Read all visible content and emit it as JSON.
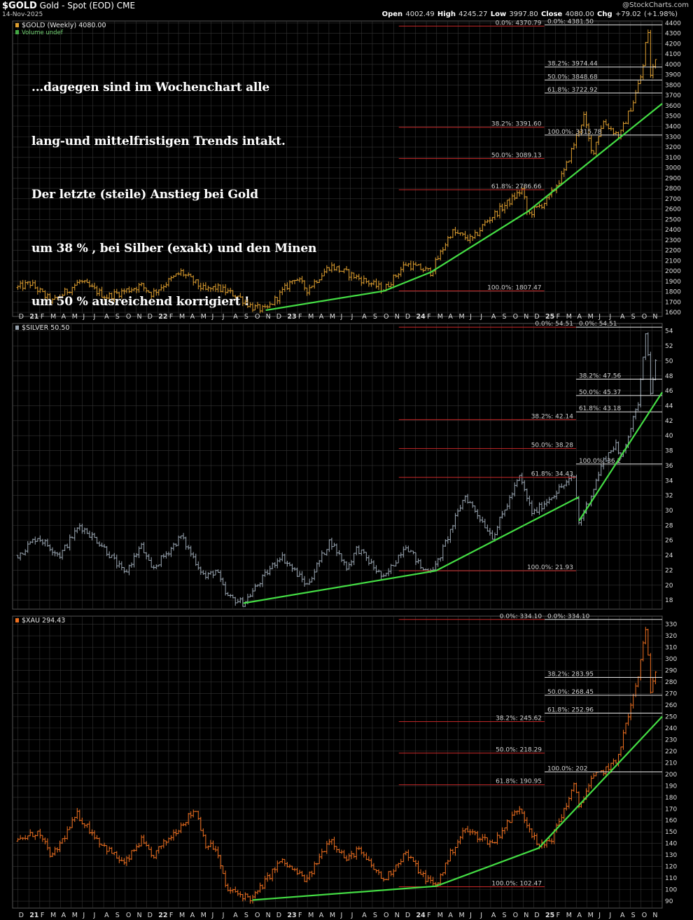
{
  "header": {
    "symbol": "$GOLD",
    "description": "Gold - Spot (EOD)",
    "exchange": "CME",
    "date": "14-Nov-2025",
    "brand": "@StockCharts.com",
    "ohlc": {
      "open_label": "Open",
      "open": "4002.49",
      "high_label": "High",
      "high": "4245.27",
      "low_label": "Low",
      "low": "3997.80",
      "close_label": "Close",
      "close": "4080.00",
      "chg_label": "Chg",
      "chg": "+79.02 (+1.98%)"
    }
  },
  "note_lines": [
    "...dagegen sind im Wochenchart alle",
    "lang-und mittelfristigen Trends intakt.",
    "Der letzte (steile) Anstieg bei Gold",
    "um 38 % , bei Silber (exakt) und den Minen",
    "um 50 % ausreichend korrigiert !"
  ],
  "colors": {
    "background": "#000000",
    "grid": "#333333",
    "gold_bars": "#E0A030",
    "silver_bars": "#9AA6B2",
    "xau_bars": "#F07020",
    "trendline": "#44DD44",
    "fib_red": "#C82828",
    "fib_white": "#E8E8E8",
    "axis_text": "#DDDDDD"
  },
  "x_axis": {
    "months": [
      "D",
      "21",
      "F",
      "M",
      "A",
      "M",
      "J",
      "J",
      "A",
      "S",
      "O",
      "N",
      "D",
      "22",
      "F",
      "M",
      "A",
      "M",
      "J",
      "J",
      "A",
      "S",
      "O",
      "N",
      "D",
      "23",
      "F",
      "M",
      "A",
      "M",
      "J",
      "J",
      "A",
      "S",
      "O",
      "N",
      "D",
      "24",
      "F",
      "M",
      "A",
      "M",
      "J",
      "J",
      "A",
      "S",
      "O",
      "N",
      "D",
      "25",
      "F",
      "M",
      "A",
      "M",
      "J",
      "J",
      "A",
      "S",
      "O",
      "N"
    ],
    "year_labels": [
      "21",
      "22",
      "23",
      "24",
      "25"
    ]
  },
  "chart_data": [
    {
      "type": "ohlc",
      "title": "$GOLD (Weekly) 4080.00",
      "legend": [
        "$GOLD (Weekly) 4080.00",
        "Volume undef"
      ],
      "ylim": [
        1560,
        4420
      ],
      "yticks": [
        1600,
        1700,
        1800,
        1900,
        2000,
        2100,
        2200,
        2300,
        2400,
        2500,
        2600,
        2700,
        2800,
        2900,
        3000,
        3100,
        3200,
        3300,
        3400,
        3500,
        3600,
        3700,
        3800,
        3900,
        4000,
        4100,
        4200,
        4300,
        4400
      ],
      "key_points": [
        {
          "t": "2020-12-01",
          "v": 1840
        },
        {
          "t": "2021-01-05",
          "v": 1880
        },
        {
          "t": "2021-03-08",
          "v": 1700
        },
        {
          "t": "2021-05-25",
          "v": 1900
        },
        {
          "t": "2021-08-09",
          "v": 1750
        },
        {
          "t": "2021-11-15",
          "v": 1860
        },
        {
          "t": "2021-12-15",
          "v": 1780
        },
        {
          "t": "2022-03-08",
          "v": 1990
        },
        {
          "t": "2022-05-16",
          "v": 1810
        },
        {
          "t": "2022-06-15",
          "v": 1840
        },
        {
          "t": "2022-08-15",
          "v": 1760
        },
        {
          "t": "2022-09-26",
          "v": 1650
        },
        {
          "t": "2022-11-03",
          "v": 1620
        },
        {
          "t": "2023-01-25",
          "v": 1940
        },
        {
          "t": "2023-02-28",
          "v": 1820
        },
        {
          "t": "2023-05-04",
          "v": 2050
        },
        {
          "t": "2023-08-21",
          "v": 1890
        },
        {
          "t": "2023-10-04",
          "v": 1820
        },
        {
          "t": "2023-12-04",
          "v": 2070
        },
        {
          "t": "2024-02-14",
          "v": 1990
        },
        {
          "t": "2024-04-12",
          "v": 2380
        },
        {
          "t": "2024-06-10",
          "v": 2300
        },
        {
          "t": "2024-07-17",
          "v": 2470
        },
        {
          "t": "2024-09-25",
          "v": 2680
        },
        {
          "t": "2024-10-30",
          "v": 2790
        },
        {
          "t": "2024-11-14",
          "v": 2540
        },
        {
          "t": "2025-01-10",
          "v": 2690
        },
        {
          "t": "2025-02-24",
          "v": 2950
        },
        {
          "t": "2025-04-22",
          "v": 3500
        },
        {
          "t": "2025-05-15",
          "v": 3120
        },
        {
          "t": "2025-06-15",
          "v": 3450
        },
        {
          "t": "2025-08-01",
          "v": 3300
        },
        {
          "t": "2025-09-10",
          "v": 3650
        },
        {
          "t": "2025-10-06",
          "v": 3950
        },
        {
          "t": "2025-10-20",
          "v": 4381
        },
        {
          "t": "2025-10-28",
          "v": 3890
        },
        {
          "t": "2025-11-14",
          "v": 4080
        }
      ],
      "fib_levels": [
        {
          "group": "long",
          "label": "0.0%: 4370.79",
          "value": 4370.79,
          "from": "2023-11-15",
          "to": "2024-12-31"
        },
        {
          "group": "long",
          "label": "38.2%: 3391.60",
          "value": 3391.6,
          "from": "2023-11-15",
          "to": "2024-12-31"
        },
        {
          "group": "long",
          "label": "50.0%: 3089.13",
          "value": 3089.13,
          "from": "2023-11-15",
          "to": "2024-12-31"
        },
        {
          "group": "long",
          "label": "61.8%: 2786.66",
          "value": 2786.66,
          "from": "2023-11-15",
          "to": "2024-12-31"
        },
        {
          "group": "long",
          "label": "100.0%: 1807.47",
          "value": 1807.47,
          "from": "2023-11-15",
          "to": "2024-12-31"
        },
        {
          "group": "short",
          "label": "0.0%: 4381.50",
          "value": 4381.5,
          "from": "2025-01-01",
          "to": "2025-11-30"
        },
        {
          "group": "short",
          "label": "38.2%: 3974.44",
          "value": 3974.44,
          "from": "2025-01-01",
          "to": "2025-11-30"
        },
        {
          "group": "short",
          "label": "50.0%: 3848.68",
          "value": 3848.68,
          "from": "2025-01-01",
          "to": "2025-11-30"
        },
        {
          "group": "short",
          "label": "61.8%: 3722.92",
          "value": 3722.92,
          "from": "2025-01-01",
          "to": "2025-11-30"
        },
        {
          "group": "short",
          "label": "100.0%: 3315.78",
          "value": 3315.78,
          "from": "2025-01-01",
          "to": "2025-11-30"
        }
      ],
      "trendlines": [
        [
          {
            "t": "2022-11-03",
            "v": 1620
          },
          {
            "t": "2023-10-04",
            "v": 1807
          }
        ],
        [
          {
            "t": "2023-10-04",
            "v": 1807
          },
          {
            "t": "2024-02-14",
            "v": 1990
          },
          {
            "t": "2024-11-14",
            "v": 2575
          },
          {
            "t": "2025-11-30",
            "v": 3620
          }
        ]
      ]
    },
    {
      "type": "ohlc",
      "title": "$SILVER 50.50",
      "legend": [
        "$SILVER 50.50"
      ],
      "ylim": [
        16.8,
        55
      ],
      "yticks": [
        18,
        20,
        22,
        24,
        26,
        28,
        30,
        32,
        34,
        36,
        38,
        40,
        42,
        44,
        46,
        48,
        50,
        52,
        54
      ],
      "key_points": [
        {
          "t": "2020-12-01",
          "v": 24
        },
        {
          "t": "2021-01-25",
          "v": 26.5
        },
        {
          "t": "2021-03-30",
          "v": 24
        },
        {
          "t": "2021-05-25",
          "v": 28
        },
        {
          "t": "2021-07-25",
          "v": 25.5
        },
        {
          "t": "2021-09-29",
          "v": 21.5
        },
        {
          "t": "2021-11-15",
          "v": 25.3
        },
        {
          "t": "2021-12-15",
          "v": 22
        },
        {
          "t": "2022-03-08",
          "v": 26.5
        },
        {
          "t": "2022-05-16",
          "v": 21
        },
        {
          "t": "2022-06-15",
          "v": 22
        },
        {
          "t": "2022-07-15",
          "v": 18.5
        },
        {
          "t": "2022-09-01",
          "v": 17.6
        },
        {
          "t": "2022-12-15",
          "v": 24
        },
        {
          "t": "2023-02-28",
          "v": 20
        },
        {
          "t": "2023-05-04",
          "v": 26
        },
        {
          "t": "2023-06-22",
          "v": 22.3
        },
        {
          "t": "2023-07-20",
          "v": 25
        },
        {
          "t": "2023-10-04",
          "v": 20.8
        },
        {
          "t": "2023-12-04",
          "v": 25.5
        },
        {
          "t": "2024-01-22",
          "v": 22
        },
        {
          "t": "2024-02-28",
          "v": 22.5
        },
        {
          "t": "2024-05-20",
          "v": 32
        },
        {
          "t": "2024-08-07",
          "v": 26.5
        },
        {
          "t": "2024-10-22",
          "v": 34.5
        },
        {
          "t": "2024-11-28",
          "v": 29.5
        },
        {
          "t": "2025-02-14",
          "v": 33
        },
        {
          "t": "2025-03-26",
          "v": 34.5
        },
        {
          "t": "2025-04-08",
          "v": 28.3
        },
        {
          "t": "2025-05-15",
          "v": 32.3
        },
        {
          "t": "2025-06-15",
          "v": 36.5
        },
        {
          "t": "2025-07-22",
          "v": 39
        },
        {
          "t": "2025-08-01",
          "v": 36.5
        },
        {
          "t": "2025-09-22",
          "v": 44
        },
        {
          "t": "2025-10-15",
          "v": 54.5
        },
        {
          "t": "2025-10-28",
          "v": 46
        },
        {
          "t": "2025-11-14",
          "v": 50.5
        }
      ],
      "fib_levels": [
        {
          "group": "long",
          "label": "0.0%: 54.51",
          "value": 54.51,
          "from": "2023-11-15",
          "to": "2025-03-31"
        },
        {
          "group": "long",
          "label": "38.2%: 42.14",
          "value": 42.14,
          "from": "2023-11-15",
          "to": "2025-03-31"
        },
        {
          "group": "long",
          "label": "50.0%: 38.28",
          "value": 38.28,
          "from": "2023-11-15",
          "to": "2025-03-31"
        },
        {
          "group": "long",
          "label": "61.8%: 34.43",
          "value": 34.43,
          "from": "2023-11-15",
          "to": "2025-03-31"
        },
        {
          "group": "long",
          "label": "100.0%: 21.93",
          "value": 21.93,
          "from": "2023-11-15",
          "to": "2025-03-31"
        },
        {
          "group": "short",
          "label": "0.0%: 54.51",
          "value": 54.51,
          "from": "2025-03-31",
          "to": "2025-11-30"
        },
        {
          "group": "short",
          "label": "38.2%: 47.56",
          "value": 47.56,
          "from": "2025-03-31",
          "to": "2025-11-30"
        },
        {
          "group": "short",
          "label": "50.0%: 45.37",
          "value": 45.37,
          "from": "2025-03-31",
          "to": "2025-11-30"
        },
        {
          "group": "short",
          "label": "61.8%: 43.18",
          "value": 43.18,
          "from": "2025-03-31",
          "to": "2025-11-30"
        },
        {
          "group": "short",
          "label": "100.0%: 36.2",
          "value": 36.2,
          "from": "2025-03-31",
          "to": "2025-11-30"
        }
      ],
      "trendlines": [
        [
          {
            "t": "2022-09-01",
            "v": 17.6
          },
          {
            "t": "2024-02-28",
            "v": 21.93
          },
          {
            "t": "2025-04-08",
            "v": 31.8
          }
        ],
        [
          {
            "t": "2025-04-08",
            "v": 28.6
          },
          {
            "t": "2025-11-30",
            "v": 45.8
          }
        ]
      ]
    },
    {
      "type": "ohlc",
      "title": "$XAU 294.43",
      "legend": [
        "$XAU 294.43"
      ],
      "ylim": [
        84,
        337
      ],
      "yticks": [
        90,
        100,
        110,
        120,
        130,
        140,
        150,
        160,
        170,
        180,
        190,
        200,
        210,
        220,
        230,
        240,
        250,
        260,
        270,
        280,
        290,
        300,
        310,
        320,
        330
      ],
      "key_points": [
        {
          "t": "2020-12-01",
          "v": 142
        },
        {
          "t": "2021-01-25",
          "v": 150
        },
        {
          "t": "2021-03-08",
          "v": 128
        },
        {
          "t": "2021-05-18",
          "v": 165
        },
        {
          "t": "2021-07-25",
          "v": 140
        },
        {
          "t": "2021-09-29",
          "v": 122
        },
        {
          "t": "2021-11-15",
          "v": 143
        },
        {
          "t": "2021-12-15",
          "v": 128
        },
        {
          "t": "2022-04-18",
          "v": 170
        },
        {
          "t": "2022-05-16",
          "v": 140
        },
        {
          "t": "2022-06-15",
          "v": 135
        },
        {
          "t": "2022-07-15",
          "v": 100
        },
        {
          "t": "2022-09-26",
          "v": 92
        },
        {
          "t": "2022-12-15",
          "v": 125
        },
        {
          "t": "2023-02-28",
          "v": 108
        },
        {
          "t": "2023-05-04",
          "v": 145
        },
        {
          "t": "2023-06-22",
          "v": 125
        },
        {
          "t": "2023-07-20",
          "v": 135
        },
        {
          "t": "2023-10-04",
          "v": 108
        },
        {
          "t": "2023-12-04",
          "v": 132
        },
        {
          "t": "2024-01-22",
          "v": 112
        },
        {
          "t": "2024-02-28",
          "v": 103
        },
        {
          "t": "2024-04-12",
          "v": 133
        },
        {
          "t": "2024-05-20",
          "v": 152
        },
        {
          "t": "2024-08-07",
          "v": 140
        },
        {
          "t": "2024-10-22",
          "v": 172
        },
        {
          "t": "2024-12-15",
          "v": 136
        },
        {
          "t": "2025-01-22",
          "v": 145
        },
        {
          "t": "2025-03-26",
          "v": 190
        },
        {
          "t": "2025-04-08",
          "v": 172
        },
        {
          "t": "2025-05-15",
          "v": 196
        },
        {
          "t": "2025-06-25",
          "v": 205
        },
        {
          "t": "2025-07-22",
          "v": 210
        },
        {
          "t": "2025-09-22",
          "v": 282
        },
        {
          "t": "2025-10-15",
          "v": 330
        },
        {
          "t": "2025-10-28",
          "v": 268
        },
        {
          "t": "2025-11-14",
          "v": 294.43
        }
      ],
      "fib_levels": [
        {
          "group": "long",
          "label": "0.0%: 334.10",
          "value": 334.1,
          "from": "2023-11-15",
          "to": "2025-01-01"
        },
        {
          "group": "long",
          "label": "38.2%: 245.62",
          "value": 245.62,
          "from": "2023-11-15",
          "to": "2025-01-01"
        },
        {
          "group": "long",
          "label": "50.0%: 218.29",
          "value": 218.29,
          "from": "2023-11-15",
          "to": "2025-01-01"
        },
        {
          "group": "long",
          "label": "61.8%: 190.95",
          "value": 190.95,
          "from": "2023-11-15",
          "to": "2025-01-01"
        },
        {
          "group": "long",
          "label": "100.0%: 102.47",
          "value": 102.47,
          "from": "2023-11-15",
          "to": "2025-01-01"
        },
        {
          "group": "short",
          "label": "0.0%: 334.10",
          "value": 334.1,
          "from": "2025-01-01",
          "to": "2025-11-30"
        },
        {
          "group": "short",
          "label": "38.2%: 283.95",
          "value": 283.95,
          "from": "2025-01-01",
          "to": "2025-11-30"
        },
        {
          "group": "short",
          "label": "50.0%: 268.45",
          "value": 268.45,
          "from": "2025-01-01",
          "to": "2025-11-30"
        },
        {
          "group": "short",
          "label": "61.8%: 252.96",
          "value": 252.96,
          "from": "2025-01-01",
          "to": "2025-11-30"
        },
        {
          "group": "short",
          "label": "100.0%: 202",
          "value": 202,
          "from": "2025-01-01",
          "to": "2025-11-30"
        }
      ],
      "trendlines": [
        [
          {
            "t": "2022-09-26",
            "v": 91
          },
          {
            "t": "2024-02-28",
            "v": 103
          },
          {
            "t": "2024-12-15",
            "v": 136
          },
          {
            "t": "2025-11-30",
            "v": 250
          }
        ]
      ]
    }
  ]
}
